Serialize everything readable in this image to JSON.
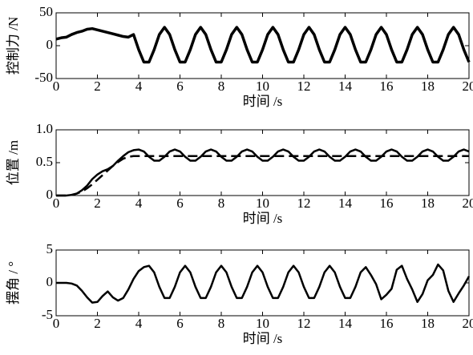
{
  "chart_data": [
    {
      "type": "line",
      "ylabel": "控制力 /N",
      "xlabel": "时间 /s",
      "xlim": [
        0,
        20
      ],
      "ylim": [
        -50,
        50
      ],
      "xticks": [
        0,
        2,
        4,
        6,
        8,
        10,
        12,
        14,
        16,
        18,
        20
      ],
      "yticks": [
        -50,
        0,
        50
      ],
      "x": [
        0,
        0.25,
        0.5,
        0.75,
        1,
        1.25,
        1.5,
        1.75,
        2,
        2.25,
        2.5,
        2.75,
        3,
        3.25,
        3.5,
        3.75,
        4,
        4.25,
        4.5,
        4.75,
        5,
        5.25,
        5.5,
        5.75,
        6,
        6.25,
        6.5,
        6.75,
        7,
        7.25,
        7.5,
        7.75,
        8,
        8.25,
        8.5,
        8.75,
        9,
        9.25,
        9.5,
        9.75,
        10,
        10.25,
        10.5,
        10.75,
        11,
        11.25,
        11.5,
        11.75,
        12,
        12.25,
        12.5,
        12.75,
        13,
        13.25,
        13.5,
        13.75,
        14,
        14.25,
        14.5,
        14.75,
        15,
        15.25,
        15.5,
        15.75,
        16,
        16.25,
        16.5,
        16.75,
        17,
        17.25,
        17.5,
        17.75,
        18,
        18.25,
        18.5,
        18.75,
        19,
        19.25,
        19.5,
        19.75,
        20
      ],
      "series": [
        {
          "color": "#000000",
          "width": 3.5,
          "values": [
            10,
            12,
            13,
            17,
            20,
            22,
            25,
            26,
            24,
            22,
            20,
            18,
            16,
            14,
            13,
            17,
            -6,
            -25,
            -25,
            -6,
            17,
            28,
            17,
            -6,
            -25,
            -25,
            -6,
            17,
            28,
            17,
            -6,
            -25,
            -25,
            -6,
            17,
            28,
            17,
            -6,
            -25,
            -25,
            -6,
            17,
            28,
            17,
            -6,
            -25,
            -25,
            -6,
            17,
            28,
            17,
            -6,
            -25,
            -25,
            -6,
            17,
            28,
            17,
            -6,
            -25,
            -25,
            -6,
            17,
            28,
            17,
            -6,
            -25,
            -25,
            -6,
            17,
            28,
            17,
            -6,
            -25,
            -25,
            -6,
            17,
            28,
            17,
            -6,
            -25
          ]
        }
      ]
    },
    {
      "type": "line",
      "ylabel": "位置 /m",
      "xlabel": "时间 /s",
      "xlim": [
        0,
        20
      ],
      "ylim": [
        0,
        1
      ],
      "xticks": [
        0,
        2,
        4,
        6,
        8,
        10,
        12,
        14,
        16,
        18,
        20
      ],
      "yticks": [
        0,
        0.5,
        {
          "value": 1,
          "label": "1.0"
        }
      ],
      "x": [
        0,
        0.25,
        0.5,
        0.75,
        1,
        1.25,
        1.5,
        1.75,
        2,
        2.25,
        2.5,
        2.75,
        3,
        3.25,
        3.5,
        3.75,
        4,
        4.25,
        4.5,
        4.75,
        5,
        5.25,
        5.5,
        5.75,
        6,
        6.25,
        6.5,
        6.75,
        7,
        7.25,
        7.5,
        7.75,
        8,
        8.25,
        8.5,
        8.75,
        9,
        9.25,
        9.5,
        9.75,
        10,
        10.25,
        10.5,
        10.75,
        11,
        11.25,
        11.5,
        11.75,
        12,
        12.25,
        12.5,
        12.75,
        13,
        13.25,
        13.5,
        13.75,
        14,
        14.25,
        14.5,
        14.75,
        15,
        15.25,
        15.5,
        15.75,
        16,
        16.25,
        16.5,
        16.75,
        17,
        17.25,
        17.5,
        17.75,
        18,
        18.25,
        18.5,
        18.75,
        19,
        19.25,
        19.5,
        19.75,
        20
      ],
      "series": [
        {
          "color": "#000000",
          "width": 2.5,
          "values": [
            0,
            0,
            0,
            0.01,
            0.03,
            0.08,
            0.15,
            0.25,
            0.32,
            0.37,
            0.4,
            0.45,
            0.53,
            0.6,
            0.66,
            0.69,
            0.7,
            0.67,
            0.59,
            0.53,
            0.53,
            0.59,
            0.67,
            0.7,
            0.67,
            0.59,
            0.53,
            0.53,
            0.59,
            0.67,
            0.7,
            0.67,
            0.59,
            0.53,
            0.53,
            0.59,
            0.67,
            0.7,
            0.67,
            0.59,
            0.53,
            0.53,
            0.59,
            0.67,
            0.7,
            0.67,
            0.59,
            0.53,
            0.53,
            0.59,
            0.67,
            0.7,
            0.67,
            0.59,
            0.53,
            0.53,
            0.59,
            0.67,
            0.7,
            0.67,
            0.59,
            0.53,
            0.53,
            0.59,
            0.67,
            0.7,
            0.67,
            0.59,
            0.53,
            0.53,
            0.59,
            0.67,
            0.7,
            0.67,
            0.59,
            0.53,
            0.53,
            0.59,
            0.67,
            0.7,
            0.67
          ]
        },
        {
          "color": "#000000",
          "width": 2.5,
          "dashed": true,
          "values": [
            0,
            0,
            0,
            0.01,
            0.03,
            0.06,
            0.11,
            0.17,
            0.24,
            0.31,
            0.38,
            0.45,
            0.51,
            0.56,
            0.59,
            0.6,
            0.6,
            0.6,
            0.6,
            0.6,
            0.6,
            0.6,
            0.6,
            0.6,
            0.6,
            0.6,
            0.6,
            0.6,
            0.6,
            0.6,
            0.6,
            0.6,
            0.6,
            0.6,
            0.6,
            0.6,
            0.6,
            0.6,
            0.6,
            0.6,
            0.6,
            0.6,
            0.6,
            0.6,
            0.6,
            0.6,
            0.6,
            0.6,
            0.6,
            0.6,
            0.6,
            0.6,
            0.6,
            0.6,
            0.6,
            0.6,
            0.6,
            0.6,
            0.6,
            0.6,
            0.6,
            0.6,
            0.6,
            0.6,
            0.6,
            0.6,
            0.6,
            0.6,
            0.6,
            0.6,
            0.6,
            0.6,
            0.6,
            0.6,
            0.6,
            0.6,
            0.6,
            0.6,
            0.6,
            0.6,
            0.6
          ]
        }
      ]
    },
    {
      "type": "line",
      "ylabel": "摆角 / °",
      "xlabel": "时间 /s",
      "xlim": [
        0,
        20
      ],
      "ylim": [
        -5,
        5
      ],
      "xticks": [
        0,
        2,
        4,
        6,
        8,
        10,
        12,
        14,
        16,
        18,
        20
      ],
      "yticks": [
        -5,
        0,
        5
      ],
      "x": [
        0,
        0.25,
        0.5,
        0.75,
        1,
        1.25,
        1.5,
        1.75,
        2,
        2.25,
        2.5,
        2.75,
        3,
        3.25,
        3.5,
        3.75,
        4,
        4.25,
        4.5,
        4.75,
        5,
        5.25,
        5.5,
        5.75,
        6,
        6.25,
        6.5,
        6.75,
        7,
        7.25,
        7.5,
        7.75,
        8,
        8.25,
        8.5,
        8.75,
        9,
        9.25,
        9.5,
        9.75,
        10,
        10.25,
        10.5,
        10.75,
        11,
        11.25,
        11.5,
        11.75,
        12,
        12.25,
        12.5,
        12.75,
        13,
        13.25,
        13.5,
        13.75,
        14,
        14.25,
        14.5,
        14.75,
        15,
        15.25,
        15.5,
        15.75,
        16,
        16.25,
        16.5,
        16.75,
        17,
        17.25,
        17.5,
        17.75,
        18,
        18.25,
        18.5,
        18.75,
        19,
        19.25,
        19.5,
        19.75,
        20
      ],
      "series": [
        {
          "color": "#000000",
          "width": 2.5,
          "values": [
            0,
            0,
            0,
            -0.1,
            -0.4,
            -1.2,
            -2.2,
            -3,
            -2.9,
            -2,
            -1.3,
            -2.2,
            -2.7,
            -2.3,
            -1,
            0.6,
            1.8,
            2.4,
            2.6,
            1.6,
            -0.6,
            -2.3,
            -2.3,
            -0.6,
            1.6,
            2.6,
            1.6,
            -0.6,
            -2.3,
            -2.3,
            -0.6,
            1.6,
            2.6,
            1.6,
            -0.6,
            -2.3,
            -2.3,
            -0.6,
            1.6,
            2.6,
            1.6,
            -0.6,
            -2.3,
            -2.3,
            -0.6,
            1.6,
            2.6,
            1.6,
            -0.6,
            -2.3,
            -2.3,
            -0.6,
            1.6,
            2.6,
            1.6,
            -0.6,
            -2.3,
            -2.3,
            -0.6,
            1.6,
            2.4,
            1.2,
            -0.2,
            -2.5,
            -1.8,
            -0.9,
            2,
            2.6,
            0.6,
            -1,
            -2.9,
            -1.7,
            0.4,
            1.2,
            2.8,
            1.9,
            -1.2,
            -2.9,
            -1.6,
            -0.4,
            1
          ]
        }
      ]
    }
  ]
}
